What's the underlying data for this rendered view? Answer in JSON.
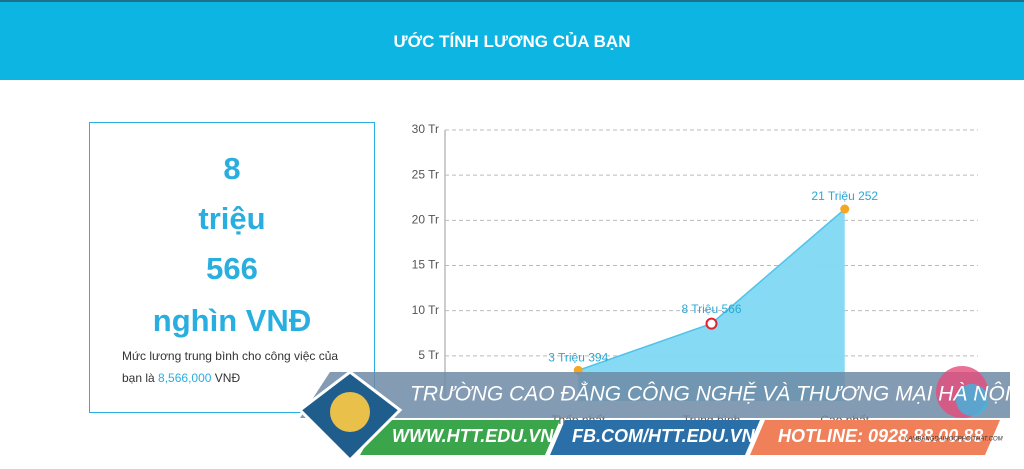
{
  "header": {
    "title": "ƯỚC TÍNH LƯƠNG CỦA BẠN"
  },
  "summary": {
    "lines": [
      "8",
      "triệu",
      "566",
      "nghìn VNĐ"
    ],
    "description_prefix": "Mức lương trung bình cho công việc của bạn là",
    "description_amount": "8,566,000",
    "description_suffix": "VNĐ"
  },
  "chart_data": {
    "type": "area",
    "categories": [
      "Thấp nhất",
      "Trung bình",
      "Cao nhất"
    ],
    "values": [
      3.394,
      8.566,
      21.252
    ],
    "value_labels": [
      "3 Triệu 394",
      "8 Triệu 566",
      "21 Triệu 252"
    ],
    "color": "#7fd8f2",
    "ylim": [
      0,
      30
    ],
    "yticks": [
      {
        "value": 5,
        "label": "5 Tr"
      },
      {
        "value": 10,
        "label": "10 Tr"
      },
      {
        "value": 15,
        "label": "15 Tr"
      },
      {
        "value": 20,
        "label": "20 Tr"
      },
      {
        "value": 25,
        "label": "25 Tr"
      },
      {
        "value": 30,
        "label": "30 Tr"
      }
    ],
    "grid": true
  },
  "banner": {
    "school": "TRƯỜNG CAO ĐẲNG CÔNG NGHỆ VÀ THƯƠNG MẠI HÀ NỘI",
    "website": "WWW.HTT.EDU.VN",
    "facebook": "FB.COM/HTT.EDU.VN",
    "hotline": "HOTLINE: 0928.88.00.88",
    "watermark": "LAMBANGDAIHOCPHOITHAT.COM"
  }
}
